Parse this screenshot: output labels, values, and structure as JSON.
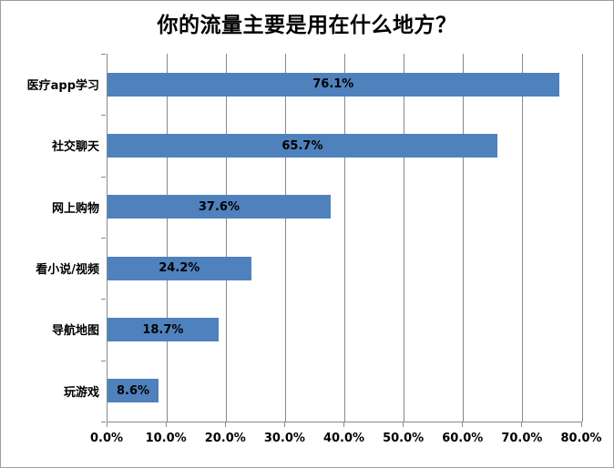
{
  "chart_data": {
    "type": "bar",
    "orientation": "horizontal",
    "title": "你的流量主要是用在什么地方？",
    "categories": [
      "医疗app学习",
      "社交聊天",
      "网上购物",
      "看小说/视频",
      "导航地图",
      "玩游戏"
    ],
    "values": [
      76.1,
      65.7,
      37.6,
      24.2,
      18.7,
      8.6
    ],
    "data_labels": [
      "76.1%",
      "65.7%",
      "37.6%",
      "24.2%",
      "18.7%",
      "8.6%"
    ],
    "x_axis": {
      "min": 0,
      "max": 80,
      "tick_step": 10,
      "tick_labels": [
        "0.0%",
        "10.0%",
        "20.0%",
        "30.0%",
        "40.0%",
        "50.0%",
        "60.0%",
        "70.0%",
        "80.0%"
      ]
    },
    "legend": "none",
    "grid": "vertical-only",
    "bar_color": "#4F81BD",
    "gridline_color": "#898989",
    "axis_color": "#898989",
    "text_color": "#000000",
    "background_color": "#FFFFFF"
  }
}
